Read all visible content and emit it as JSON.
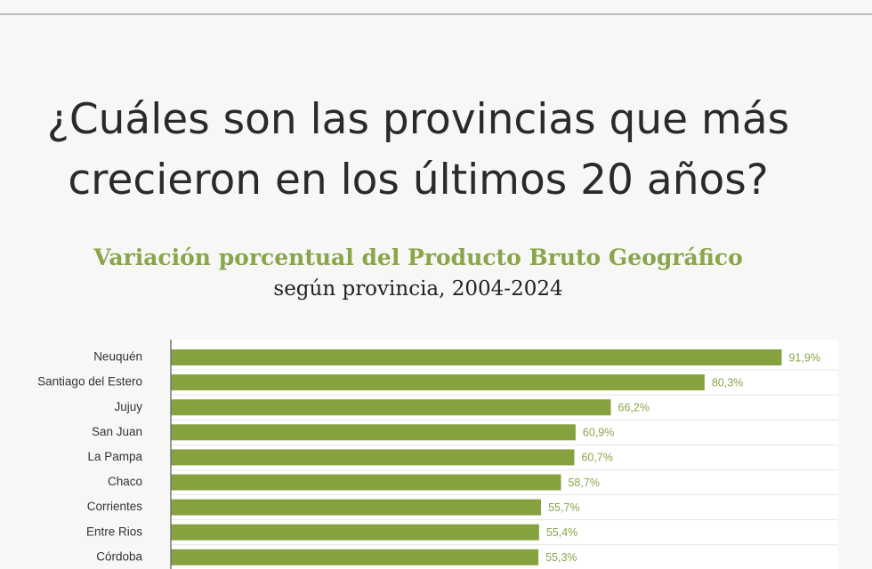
{
  "chart_data": {
    "type": "bar",
    "title": [
      "¿Cuáles son las provincias que más",
      "crecieron en los últimos 20 años?"
    ],
    "subtitle": [
      "Variación porcentual del Producto Bruto Geográfico",
      "según provincia, 2004-2024"
    ],
    "categories": [
      "Neuquén",
      "Santiago del Estero",
      "Jujuy",
      "San Juan",
      "La Pampa",
      "Chaco",
      "Corrientes",
      "Entre Rios",
      "Córdoba"
    ],
    "values": [
      91.9,
      80.3,
      66.2,
      60.9,
      60.7,
      58.7,
      55.7,
      55.4,
      55.3
    ],
    "value_labels": [
      "91,9%",
      "80,3%",
      "66,2%",
      "60,9%",
      "60,7%",
      "58,7%",
      "55,7%",
      "55,4%",
      "55,3%"
    ],
    "color": "#86a23f",
    "label_color": "#8aa64a"
  }
}
